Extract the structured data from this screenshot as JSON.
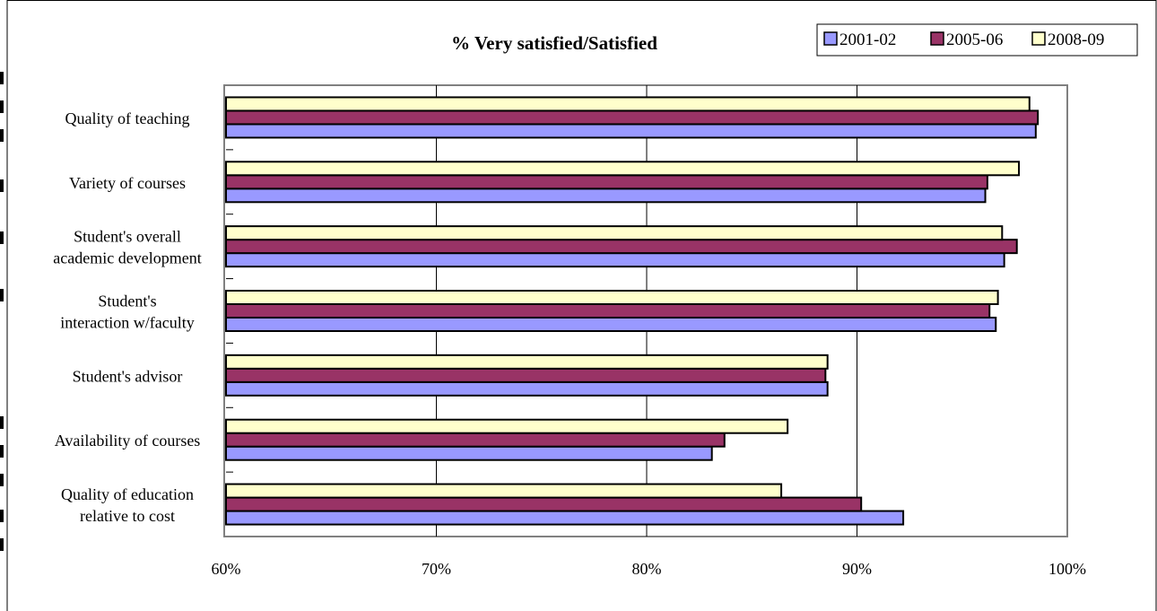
{
  "chart_data": {
    "type": "bar",
    "orientation": "horizontal",
    "title": "% Very satisfied/Satisfied",
    "categories": [
      [
        "Quality of teaching"
      ],
      [
        "Variety of courses"
      ],
      [
        "Student's overall",
        "academic development"
      ],
      [
        "Student's",
        "interaction w/faculty"
      ],
      [
        "Student's advisor"
      ],
      [
        "Availability of courses"
      ],
      [
        "Quality of education",
        "relative to cost"
      ]
    ],
    "series": [
      {
        "name": "2001-02",
        "color": "#9999ff",
        "values": [
          98.5,
          96.1,
          97.0,
          96.6,
          88.6,
          83.1,
          92.2
        ]
      },
      {
        "name": "2005-06",
        "color": "#993366",
        "values": [
          98.6,
          96.2,
          97.6,
          96.3,
          88.5,
          83.7,
          90.2
        ]
      },
      {
        "name": "2008-09",
        "color": "#ffffcc",
        "values": [
          98.2,
          97.7,
          96.9,
          96.7,
          88.6,
          86.7,
          86.4
        ]
      }
    ],
    "x_ticks": [
      "60%",
      "70%",
      "80%",
      "90%",
      "100%"
    ],
    "xlim": [
      60,
      100
    ],
    "grid": "vertical",
    "legend_position": "top-right"
  }
}
